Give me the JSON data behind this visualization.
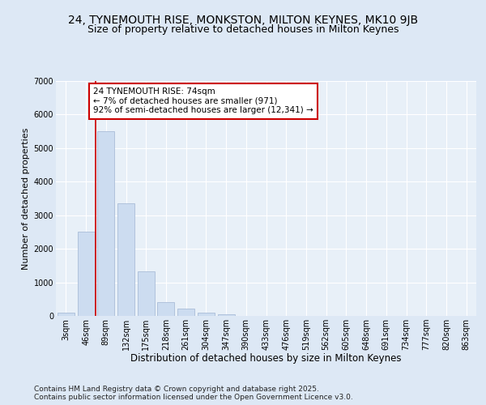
{
  "title1": "24, TYNEMOUTH RISE, MONKSTON, MILTON KEYNES, MK10 9JB",
  "title2": "Size of property relative to detached houses in Milton Keynes",
  "xlabel": "Distribution of detached houses by size in Milton Keynes",
  "ylabel": "Number of detached properties",
  "categories": [
    "3sqm",
    "46sqm",
    "89sqm",
    "132sqm",
    "175sqm",
    "218sqm",
    "261sqm",
    "304sqm",
    "347sqm",
    "390sqm",
    "433sqm",
    "476sqm",
    "519sqm",
    "562sqm",
    "605sqm",
    "648sqm",
    "691sqm",
    "734sqm",
    "777sqm",
    "820sqm",
    "863sqm"
  ],
  "values": [
    100,
    2500,
    5500,
    3350,
    1320,
    420,
    220,
    100,
    60,
    10,
    5,
    2,
    1,
    0,
    0,
    0,
    0,
    0,
    0,
    0,
    0
  ],
  "bar_color": "#ccdcf0",
  "bar_edge_color": "#aabdd8",
  "vline_x_index": 1.5,
  "vline_color": "#cc0000",
  "annotation_text": "24 TYNEMOUTH RISE: 74sqm\n← 7% of detached houses are smaller (971)\n92% of semi-detached houses are larger (12,341) →",
  "annotation_box_facecolor": "#ffffff",
  "annotation_box_edgecolor": "#cc0000",
  "ylim": [
    0,
    7000
  ],
  "yticks": [
    0,
    1000,
    2000,
    3000,
    4000,
    5000,
    6000,
    7000
  ],
  "bg_color": "#dde8f5",
  "plot_bg_color": "#e8f0f8",
  "footer_text": "Contains HM Land Registry data © Crown copyright and database right 2025.\nContains public sector information licensed under the Open Government Licence v3.0.",
  "title1_fontsize": 10,
  "title2_fontsize": 9,
  "xlabel_fontsize": 8.5,
  "ylabel_fontsize": 8,
  "tick_fontsize": 7,
  "annotation_fontsize": 7.5,
  "footer_fontsize": 6.5
}
